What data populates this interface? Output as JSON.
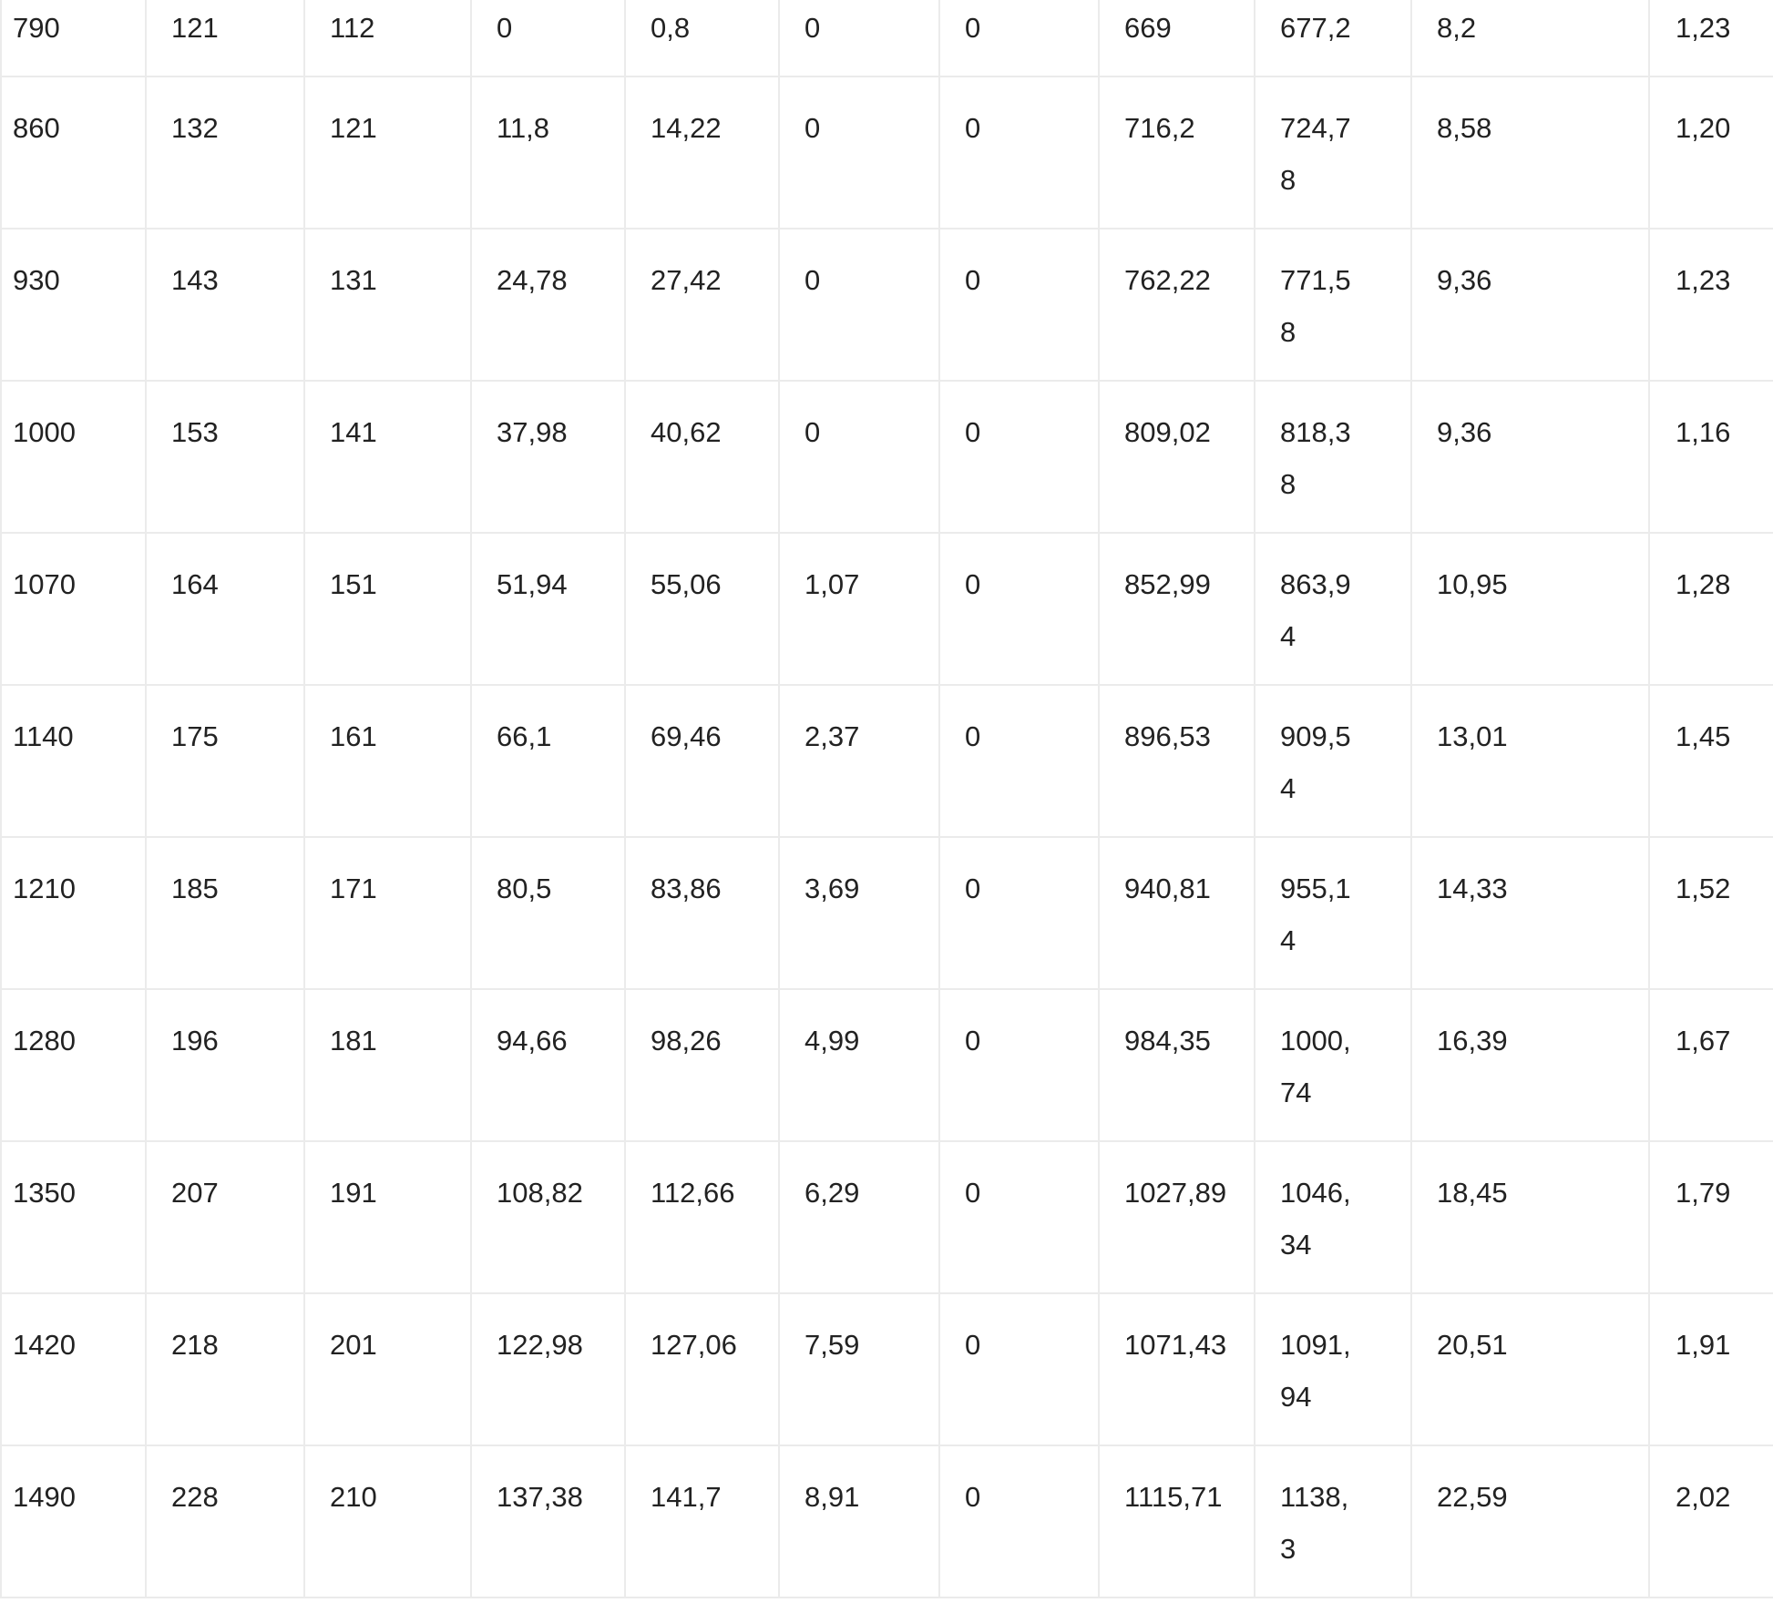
{
  "table": {
    "rows": [
      [
        "790",
        "121",
        "112",
        "0",
        "0,8",
        "0",
        "0",
        "669",
        "677,2",
        "8,2",
        "1,23"
      ],
      [
        "860",
        "132",
        "121",
        "11,8",
        "14,22",
        "0",
        "0",
        "716,2",
        "724,78",
        "8,58",
        "1,20"
      ],
      [
        "930",
        "143",
        "131",
        "24,78",
        "27,42",
        "0",
        "0",
        "762,22",
        "771,58",
        "9,36",
        "1,23"
      ],
      [
        "1000",
        "153",
        "141",
        "37,98",
        "40,62",
        "0",
        "0",
        "809,02",
        "818,38",
        "9,36",
        "1,16"
      ],
      [
        "1070",
        "164",
        "151",
        "51,94",
        "55,06",
        "1,07",
        "0",
        "852,99",
        "863,94",
        "10,95",
        "1,28"
      ],
      [
        "1140",
        "175",
        "161",
        "66,1",
        "69,46",
        "2,37",
        "0",
        "896,53",
        "909,54",
        "13,01",
        "1,45"
      ],
      [
        "1210",
        "185",
        "171",
        "80,5",
        "83,86",
        "3,69",
        "0",
        "940,81",
        "955,14",
        "14,33",
        "1,52"
      ],
      [
        "1280",
        "196",
        "181",
        "94,66",
        "98,26",
        "4,99",
        "0",
        "984,35",
        "1000,74",
        "16,39",
        "1,67"
      ],
      [
        "1350",
        "207",
        "191",
        "108,82",
        "112,66",
        "6,29",
        "0",
        "1027,89",
        "1046,34",
        "18,45",
        "1,79"
      ],
      [
        "1420",
        "218",
        "201",
        "122,98",
        "127,06",
        "7,59",
        "0",
        "1071,43",
        "1091,94",
        "20,51",
        "1,91"
      ],
      [
        "1490",
        "228",
        "210",
        "137,38",
        "141,7",
        "8,91",
        "0",
        "1115,71",
        "1138,3",
        "22,59",
        "2,02"
      ]
    ]
  }
}
